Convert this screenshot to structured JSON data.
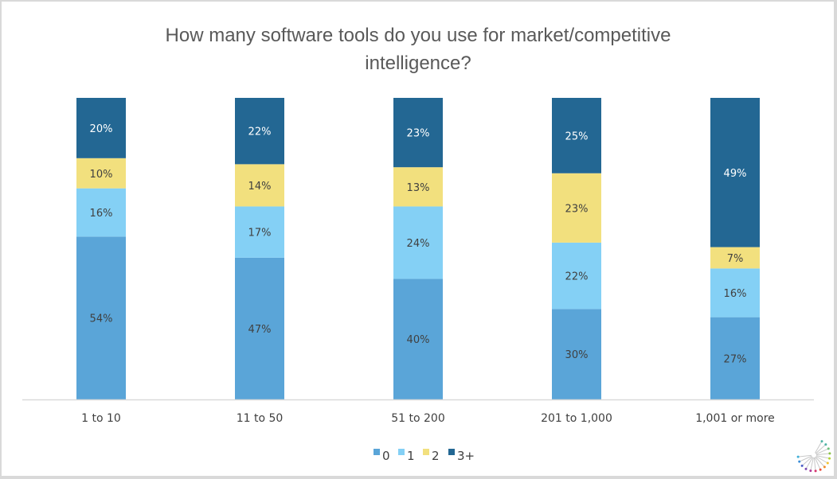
{
  "chart_data": {
    "type": "bar",
    "stacked": true,
    "title_lines": [
      "How many software tools do you use for market/competitive",
      "intelligence?"
    ],
    "xlabel": "",
    "ylabel": "",
    "ylim": [
      0,
      100
    ],
    "grid": false,
    "categories": [
      "1 to 10",
      "11 to 50",
      "51 to 200",
      "201 to 1,000",
      "1,001 or more"
    ],
    "series": [
      {
        "name": "0",
        "color": "#5aa5d8",
        "label_color": "#404040",
        "values": [
          54,
          47,
          40,
          30,
          27
        ]
      },
      {
        "name": "1",
        "color": "#84d0f5",
        "label_color": "#404040",
        "values": [
          16,
          17,
          24,
          22,
          16
        ]
      },
      {
        "name": "2",
        "color": "#f2e07e",
        "label_color": "#404040",
        "values": [
          10,
          14,
          13,
          23,
          7
        ]
      },
      {
        "name": "3+",
        "color": "#236793",
        "label_color": "#ffffff",
        "values": [
          20,
          22,
          23,
          25,
          49
        ]
      }
    ],
    "value_suffix": "%",
    "legend_position": "bottom"
  },
  "logo": {
    "icon": "starburst-logo-icon"
  }
}
